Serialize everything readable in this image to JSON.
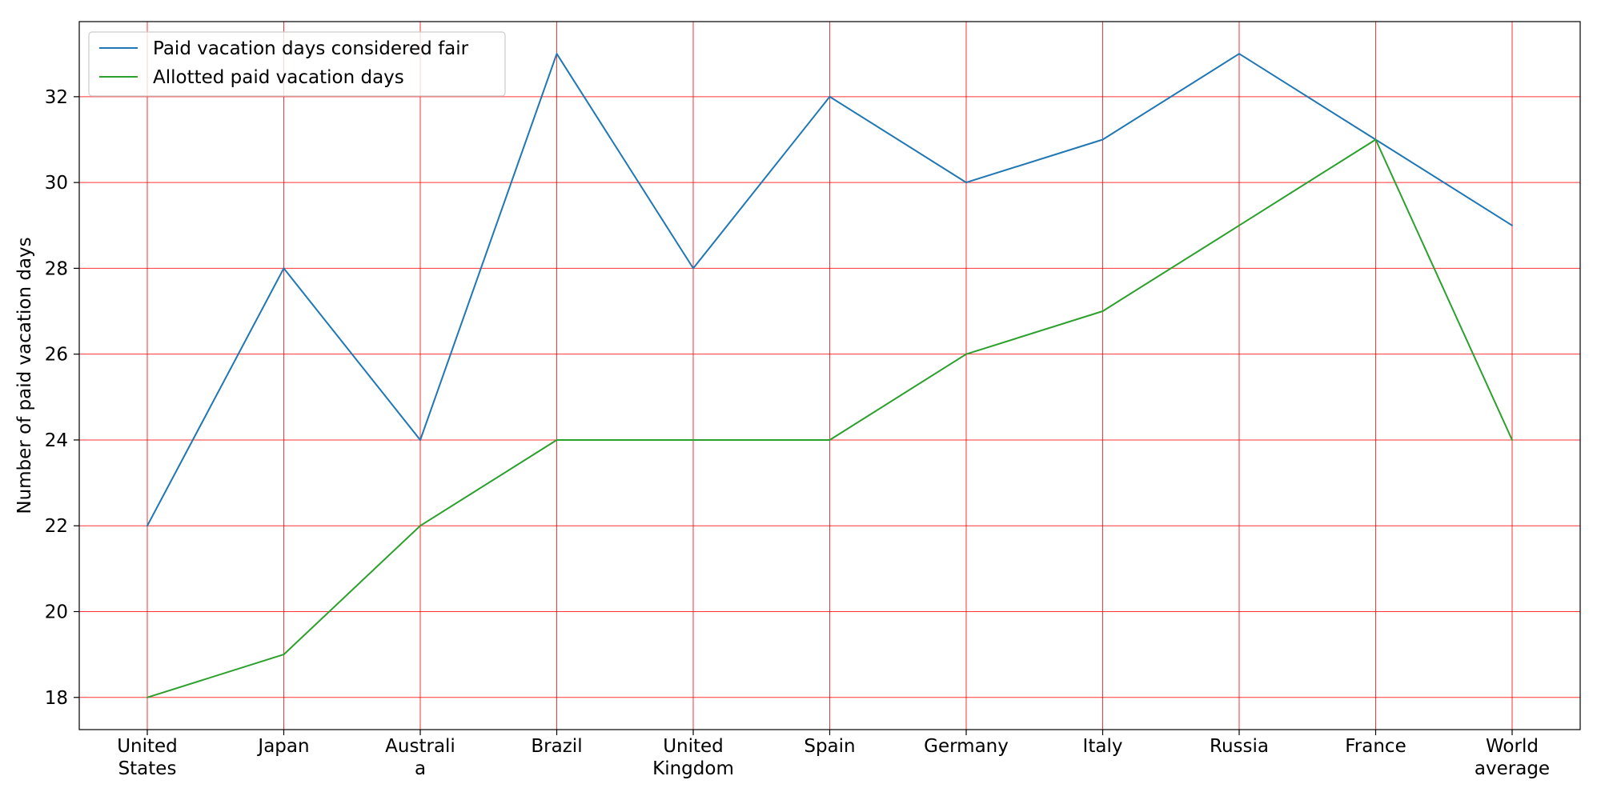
{
  "chart_data": {
    "type": "line",
    "title": "",
    "xlabel": "",
    "ylabel": "Number of paid vacation days",
    "categories": [
      "United\nStates",
      "Japan",
      "Australi\na",
      "Brazil",
      "United\nKingdom",
      "Spain",
      "Germany",
      "Italy",
      "Russia",
      "France",
      "World\naverage"
    ],
    "series": [
      {
        "name": "Paid vacation days considered fair",
        "color": "#1f77b4",
        "values": [
          22,
          28,
          24,
          33,
          28,
          32,
          30,
          31,
          33,
          31,
          29
        ]
      },
      {
        "name": "Allotted paid vacation days",
        "color": "#2ca02c",
        "values": [
          18,
          19,
          22,
          24,
          24,
          24,
          26,
          27,
          29,
          31,
          24
        ]
      }
    ],
    "ylim": [
      17.25,
      33.75
    ],
    "yticks": [
      18,
      20,
      22,
      24,
      26,
      28,
      30,
      32
    ],
    "grid": true,
    "grid_color": "#ff0000",
    "legend_position": "upper-left"
  }
}
